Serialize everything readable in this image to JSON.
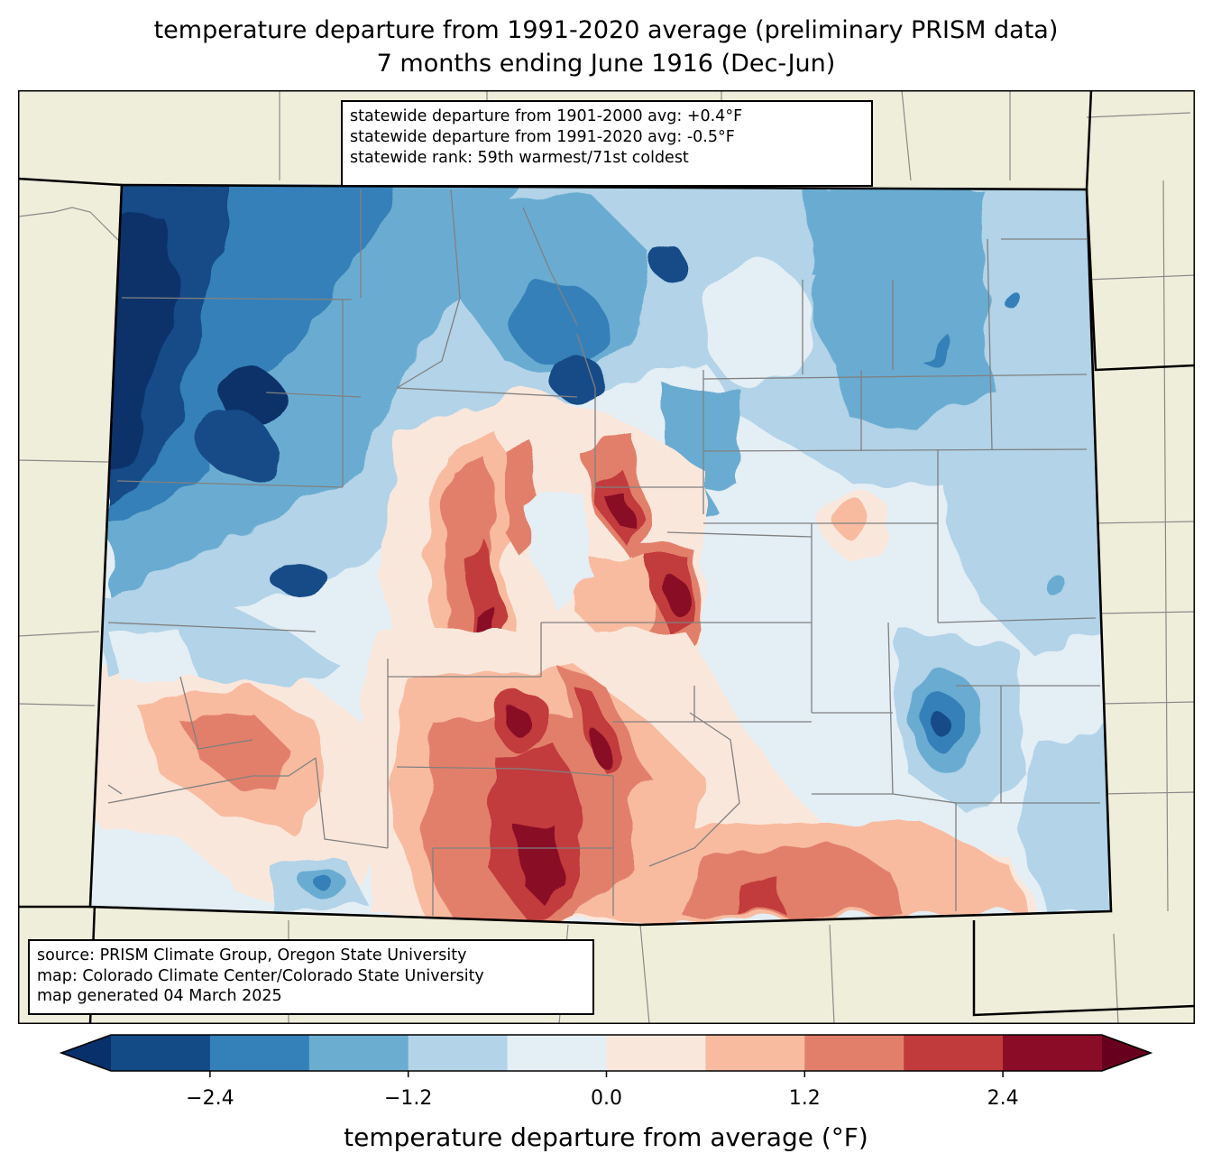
{
  "title": {
    "line1": "temperature departure from 1991-2020 average (preliminary PRISM data)",
    "line2": "7 months ending June 1916 (Dec-Jun)"
  },
  "stats_box": {
    "lines": [
      "statewide departure from 1901-2000 avg: +0.4°F",
      "statewide departure from 1991-2020 avg: -0.5°F",
      "statewide rank: 59th warmest/71st coldest"
    ]
  },
  "source_box": {
    "lines": [
      "source: PRISM Climate Group, Oregon State University",
      "map: Colorado Climate Center/Colorado State University",
      "map generated 04 March 2025"
    ]
  },
  "chart_data": {
    "type": "heatmap",
    "title": "temperature departure from 1991-2020 average (preliminary PRISM data) — 7 months ending June 1916 (Dec-Jun)",
    "region": "Colorado",
    "units": "°F",
    "colorbar": {
      "label": "temperature departure from average (°F)",
      "levels": [
        -3.0,
        -2.4,
        -1.8,
        -1.2,
        -0.6,
        0.0,
        0.6,
        1.2,
        1.8,
        2.4,
        3.0
      ],
      "ticks": [
        -2.4,
        -1.2,
        0.0,
        1.2,
        2.4
      ],
      "tick_labels": [
        "−2.4",
        "−1.2",
        "0.0",
        "1.2",
        "2.4"
      ],
      "extend": "both",
      "under_color": "#08306b",
      "over_color": "#67001f",
      "bin_colors": [
        "#134b87",
        "#3480b9",
        "#6bacd1",
        "#b2d3e8",
        "#e4eef5",
        "#fae7dc",
        "#f8bba0",
        "#e27f6a",
        "#c23b3c",
        "#8a0c26"
      ]
    },
    "regional_pattern": [
      {
        "region": "far northwest",
        "approx_departure": "< -2.4"
      },
      {
        "region": "northwest / north-central mountains",
        "approx_departure": "-2.4 to -0.6"
      },
      {
        "region": "northeast plains",
        "approx_departure": "-1.8 to -0.6"
      },
      {
        "region": "central mountains / San Luis Valley",
        "approx_departure": "0.6 to > 2.4"
      },
      {
        "region": "southern / south-central",
        "approx_departure": "0.6 to 2.4"
      },
      {
        "region": "southwest",
        "approx_departure": "0.0 to 1.8"
      },
      {
        "region": "southeast plains (Baca/Prowers area)",
        "approx_departure": "-2.4 to 0.0"
      },
      {
        "region": "east-central plains",
        "approx_departure": "-1.2 to 0.6"
      }
    ]
  },
  "colors": {
    "land_background": "#efeedb",
    "state_border": "#000000",
    "county_lines": "#808080"
  }
}
